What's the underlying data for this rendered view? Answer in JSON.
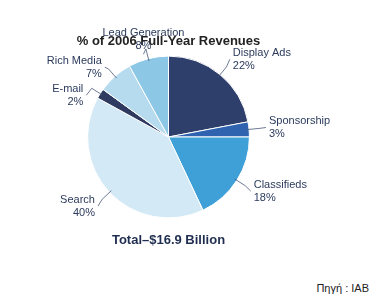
{
  "chart_data": {
    "type": "pie",
    "title": "% of 2006 Full-Year Revenues",
    "subtitle": "Total–$16.9 Billion",
    "source": "Πηγή : IAB",
    "categories": [
      "Display Ads",
      "Sponsorship",
      "Classifieds",
      "Search",
      "E-mail",
      "Rich Media",
      "Lead Generation"
    ],
    "values": [
      22,
      3,
      18,
      40,
      2,
      7,
      8
    ],
    "value_labels": [
      "22%",
      "3%",
      "18%",
      "40%",
      "2%",
      "7%",
      "8%"
    ],
    "colors": [
      "#2e3f6b",
      "#2f63b0",
      "#3fa0d8",
      "#d3e9f6",
      "#2e3a5f",
      "#b6dbef",
      "#8cc7e5"
    ],
    "data_labels": true
  }
}
